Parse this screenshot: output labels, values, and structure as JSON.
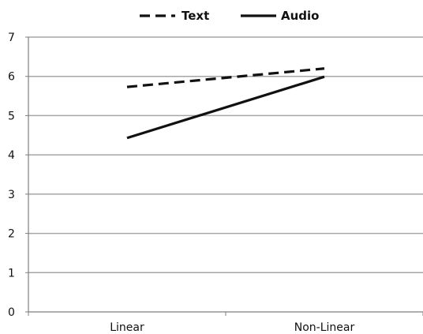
{
  "chart_data": {
    "type": "line",
    "categories": [
      "Linear",
      "Non-Linear"
    ],
    "series": [
      {
        "name": "Text",
        "values": [
          5.73,
          6.2
        ],
        "style": "dashed",
        "color": "#111111"
      },
      {
        "name": "Audio",
        "values": [
          4.43,
          5.99
        ],
        "style": "solid",
        "color": "#111111"
      }
    ],
    "title": "",
    "xlabel": "",
    "ylabel": "",
    "ylim": [
      0,
      7
    ],
    "yticks": [
      "0",
      "1",
      "2",
      "3",
      "4",
      "5",
      "6",
      "7"
    ],
    "grid": true,
    "legend_position": "top",
    "colors": {
      "gridline": "#a6a6a6",
      "axis": "#7f7f7f",
      "line": "#111111"
    }
  }
}
